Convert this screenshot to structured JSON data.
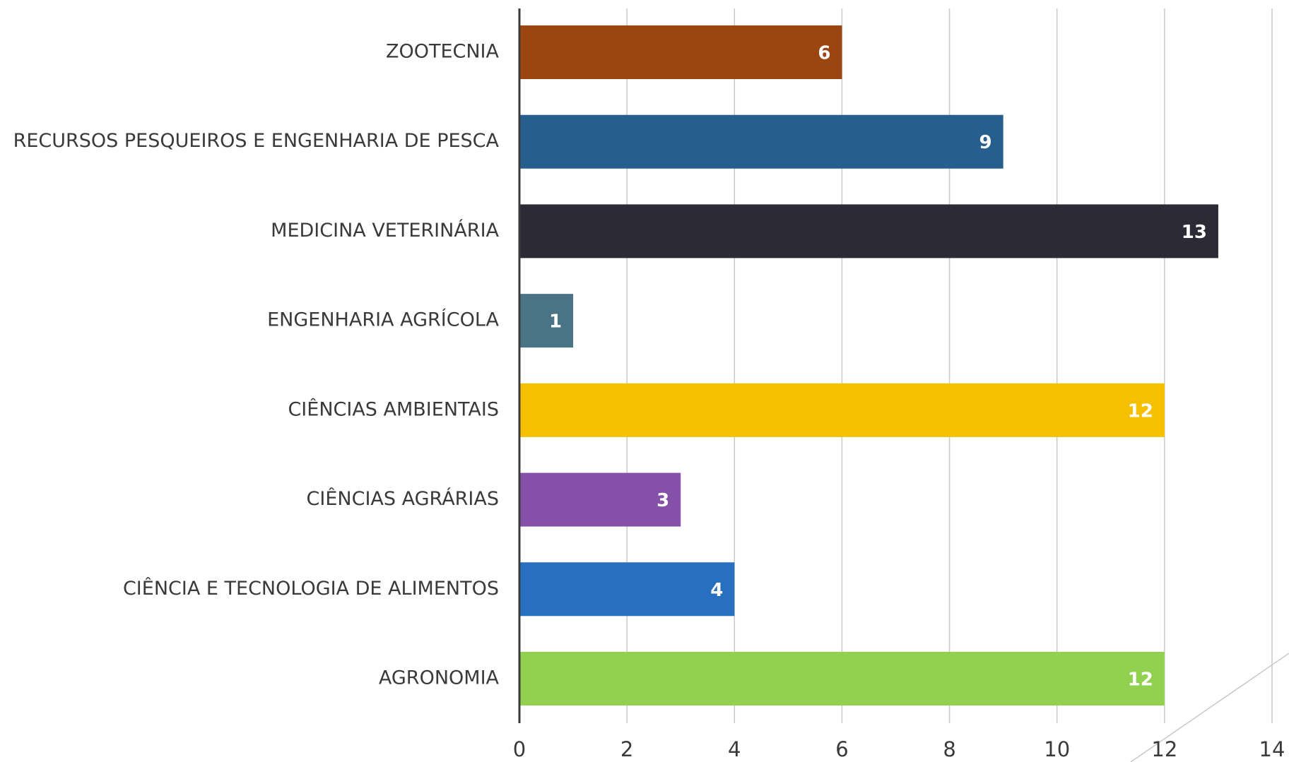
{
  "chart_data": {
    "type": "bar",
    "orientation": "horizontal",
    "categories": [
      "ZOOTECNIA",
      "RECURSOS PESQUEIROS E ENGENHARIA DE PESCA",
      "MEDICINA VETERINÁRIA",
      "ENGENHARIA AGRÍCOLA",
      "CIÊNCIAS AMBIENTAIS",
      "CIÊNCIAS AGRÁRIAS",
      "CIÊNCIA E TECNOLOGIA DE ALIMENTOS",
      "AGRONOMIA"
    ],
    "values": [
      6,
      9,
      13,
      1,
      12,
      3,
      4,
      12
    ],
    "colors": [
      "#9b4510",
      "#265e8e",
      "#2b2a35",
      "#4a7386",
      "#f6c000",
      "#8450a8",
      "#2770c0",
      "#92d050"
    ],
    "xlim": [
      0,
      14
    ],
    "xticks": [
      0,
      2,
      4,
      6,
      8,
      10,
      12,
      14
    ],
    "grid": true
  }
}
